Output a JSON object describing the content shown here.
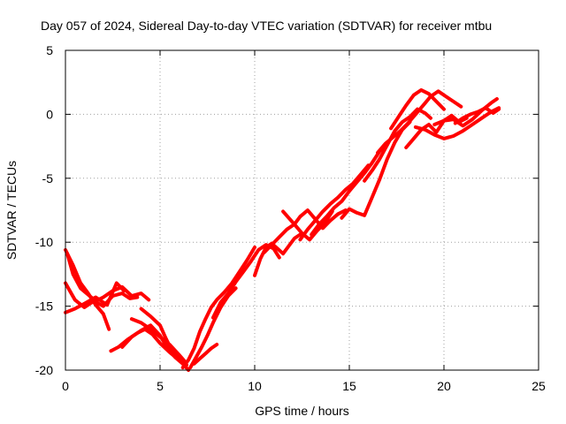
{
  "chart_data": {
    "type": "line",
    "title": "Day 057 of 2024, Sidereal Day-to-day VTEC variation (SDTVAR) for receiver mtbu",
    "xlabel": "GPS time / hours",
    "ylabel": "SDTVAR / TECUs",
    "xlim": [
      0,
      25
    ],
    "ylim": [
      -20,
      5
    ],
    "xticks": [
      0,
      5,
      10,
      15,
      20,
      25
    ],
    "yticks": [
      -20,
      -15,
      -10,
      -5,
      0,
      5
    ],
    "xtick_labels": [
      "0",
      "5",
      "10",
      "15",
      "20",
      "25"
    ],
    "ytick_labels": [
      "-20",
      "-15",
      "-10",
      "-5",
      "0",
      "5"
    ],
    "grid": true,
    "color": "#ff0000",
    "series": [
      {
        "x": [
          0.0,
          0.4,
          0.8,
          1.2,
          1.6,
          2.0,
          2.3
        ],
        "y": [
          -10.6,
          -11.8,
          -13.2,
          -14.0,
          -14.9,
          -15.6,
          -16.8
        ]
      },
      {
        "x": [
          0.0,
          0.5,
          1.0,
          1.5,
          2.0,
          2.5,
          3.0,
          3.4,
          3.8
        ],
        "y": [
          -13.2,
          -14.5,
          -15.1,
          -14.6,
          -15.0,
          -14.2,
          -14.0,
          -14.4,
          -14.3
        ]
      },
      {
        "x": [
          0.0,
          0.5,
          1.0,
          1.6,
          2.2,
          2.7,
          3.1
        ],
        "y": [
          -15.5,
          -15.2,
          -14.8,
          -14.3,
          -14.9,
          -13.2,
          -13.8
        ]
      },
      {
        "x": [
          0.1,
          0.4,
          0.8,
          1.2,
          1.6,
          2.0,
          2.5,
          3.0,
          3.5,
          4.0,
          4.4
        ],
        "y": [
          -10.9,
          -12.5,
          -13.6,
          -14.1,
          -14.6,
          -14.3,
          -13.8,
          -13.5,
          -14.2,
          -14.0,
          -14.5
        ]
      },
      {
        "x": [
          2.4,
          2.8,
          3.3,
          3.8,
          4.2,
          4.6,
          5.0,
          5.5,
          6.0,
          6.4
        ],
        "y": [
          -18.5,
          -18.2,
          -17.6,
          -17.1,
          -16.8,
          -17.2,
          -17.9,
          -18.6,
          -19.2,
          -19.6
        ]
      },
      {
        "x": [
          3.0,
          3.5,
          4.0,
          4.5,
          5.0,
          5.4,
          5.8,
          6.2,
          6.5
        ],
        "y": [
          -18.2,
          -17.4,
          -16.9,
          -16.5,
          -17.3,
          -18.3,
          -19.0,
          -19.5,
          -20.0
        ]
      },
      {
        "x": [
          4.0,
          4.5,
          5.0,
          5.3,
          5.6,
          5.9,
          6.2
        ],
        "y": [
          -15.2,
          -15.8,
          -16.5,
          -17.5,
          -18.4,
          -19.0,
          -19.4
        ]
      },
      {
        "x": [
          3.5,
          4.0,
          4.5,
          5.0,
          5.5,
          6.0,
          6.3
        ],
        "y": [
          -16.0,
          -16.3,
          -16.8,
          -17.4,
          -18.0,
          -18.8,
          -19.3
        ]
      },
      {
        "x": [
          6.2,
          6.5,
          6.8,
          7.1,
          7.4,
          7.7,
          8.0,
          8.4,
          8.8,
          9.2,
          9.6,
          10.0
        ],
        "y": [
          -19.8,
          -19.2,
          -18.3,
          -17.0,
          -16.0,
          -15.1,
          -14.5,
          -13.9,
          -13.2,
          -12.3,
          -11.4,
          -10.4
        ]
      },
      {
        "x": [
          6.6,
          6.9,
          7.2,
          7.5,
          7.8,
          8.2,
          8.6,
          9.0
        ],
        "y": [
          -19.8,
          -19.0,
          -18.2,
          -17.3,
          -16.3,
          -15.1,
          -14.2,
          -13.6
        ]
      },
      {
        "x": [
          6.8,
          7.1,
          7.4,
          7.7,
          8.0
        ],
        "y": [
          -19.5,
          -19.1,
          -18.7,
          -18.3,
          -18.0
        ]
      },
      {
        "x": [
          7.8,
          8.2,
          8.6,
          9.0,
          9.4,
          9.8,
          10.2,
          10.6,
          11.0,
          11.3
        ],
        "y": [
          -15.9,
          -14.7,
          -14.0,
          -13.1,
          -12.3,
          -11.5,
          -10.6,
          -10.2,
          -10.5,
          -11.2
        ]
      },
      {
        "x": [
          10.0,
          10.3,
          10.6,
          10.9,
          11.2,
          11.5,
          11.8,
          12.1,
          12.4
        ],
        "y": [
          -12.6,
          -11.3,
          -10.4,
          -10.1,
          -10.5,
          -10.9,
          -10.3,
          -9.7,
          -9.4
        ]
      },
      {
        "x": [
          10.5,
          10.9,
          11.3,
          11.7,
          12.1,
          12.5,
          12.9,
          13.3,
          13.7,
          14.1
        ],
        "y": [
          -10.8,
          -10.2,
          -9.6,
          -9.0,
          -8.6,
          -9.3,
          -9.8,
          -9.1,
          -8.5,
          -7.6
        ]
      },
      {
        "x": [
          11.5,
          11.8,
          12.1,
          12.4,
          12.8,
          13.2,
          13.6,
          14.0,
          14.4,
          14.8
        ],
        "y": [
          -7.6,
          -8.1,
          -8.6,
          -8.0,
          -7.5,
          -8.2,
          -8.9,
          -8.3,
          -7.8,
          -7.5
        ]
      },
      {
        "x": [
          12.4,
          12.8,
          13.2,
          13.6,
          14.0,
          14.4,
          14.8,
          15.2,
          15.6,
          16.0
        ],
        "y": [
          -9.8,
          -9.0,
          -8.3,
          -7.6,
          -7.0,
          -6.5,
          -5.9,
          -5.4,
          -4.7,
          -4.0
        ]
      },
      {
        "x": [
          13.0,
          13.4,
          13.8,
          14.2,
          14.6,
          15.0,
          15.4,
          15.8,
          16.2,
          16.6,
          17.0
        ],
        "y": [
          -9.4,
          -8.6,
          -8.0,
          -7.3,
          -6.8,
          -6.0,
          -5.3,
          -4.6,
          -3.8,
          -2.9,
          -2.2
        ]
      },
      {
        "x": [
          14.6,
          15.0,
          15.4,
          15.8,
          16.2,
          16.6,
          17.0,
          17.4,
          17.8,
          18.2
        ],
        "y": [
          -8.1,
          -7.4,
          -7.7,
          -7.9,
          -6.5,
          -5.1,
          -3.5,
          -2.2,
          -1.2,
          -0.6
        ]
      },
      {
        "x": [
          15.8,
          16.2,
          16.6,
          17.0,
          17.4,
          17.8,
          18.2,
          18.6,
          19.0,
          19.3
        ],
        "y": [
          -5.2,
          -4.4,
          -3.5,
          -2.4,
          -1.3,
          -0.6,
          -0.2,
          0.4,
          0.1,
          -0.3
        ]
      },
      {
        "x": [
          16.5,
          16.9,
          17.3,
          17.7,
          18.1,
          18.5,
          18.9,
          19.3,
          19.7,
          20.1,
          20.5,
          20.9
        ],
        "y": [
          -3.0,
          -2.3,
          -1.8,
          -1.3,
          -0.7,
          0.0,
          0.7,
          1.4,
          1.8,
          1.4,
          1.0,
          0.6
        ]
      },
      {
        "x": [
          17.2,
          17.6,
          18.0,
          18.4,
          18.8,
          19.2,
          19.6,
          20.0
        ],
        "y": [
          -1.1,
          -0.2,
          0.7,
          1.5,
          1.9,
          1.6,
          1.0,
          0.4
        ]
      },
      {
        "x": [
          18.0,
          18.4,
          18.8,
          19.2,
          19.6,
          20.0,
          20.4,
          20.8,
          21.2
        ],
        "y": [
          -2.6,
          -1.9,
          -1.2,
          -0.8,
          -1.4,
          -0.5,
          -0.1,
          -0.6,
          -0.3
        ]
      },
      {
        "x": [
          18.5,
          19.0,
          19.5,
          20.0,
          20.5,
          21.0,
          21.5,
          22.0,
          22.5,
          22.9
        ],
        "y": [
          -1.0,
          -1.2,
          -1.6,
          -1.9,
          -1.7,
          -1.3,
          -0.8,
          -0.3,
          0.2,
          0.5
        ]
      },
      {
        "x": [
          19.5,
          20.0,
          20.5,
          21.0,
          21.5,
          22.0,
          22.5,
          22.8
        ],
        "y": [
          -0.8,
          -0.5,
          -0.4,
          -0.9,
          -0.4,
          0.3,
          0.9,
          1.2
        ]
      },
      {
        "x": [
          20.6,
          21.0,
          21.4,
          21.8,
          22.2,
          22.6,
          22.9
        ],
        "y": [
          -0.7,
          -0.3,
          0.0,
          0.2,
          0.5,
          0.1,
          0.4
        ]
      }
    ]
  }
}
